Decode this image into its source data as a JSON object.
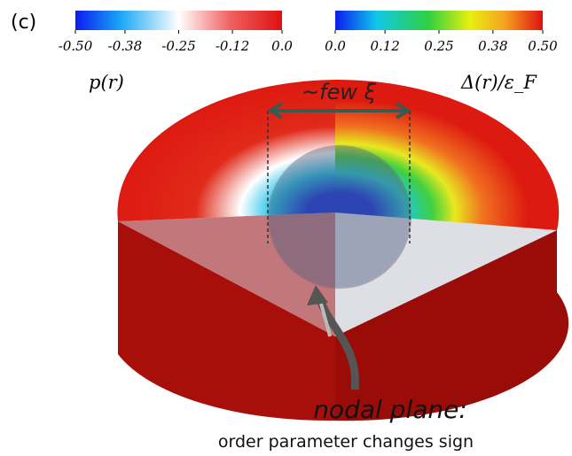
{
  "panel_label": "(c)",
  "colorbars": [
    {
      "label": "p(r)",
      "lim": [
        -0.5,
        0.0
      ],
      "ticks": [
        {
          "value": -0.5,
          "label": "-0.50"
        },
        -0.38,
        -0.25,
        -0.12,
        {
          "value": 0.0,
          "label": "0.0"
        }
      ]
    },
    {
      "label": "Δ(r)/ε_F",
      "lim": [
        0.0,
        0.5
      ],
      "ticks": [
        {
          "value": 0.0,
          "label": "0.0"
        },
        0.12,
        0.25,
        0.38,
        {
          "value": 0.5,
          "label": "0.50"
        }
      ]
    }
  ],
  "annotations": {
    "width": "~few ξ",
    "nodal_title": "nodal plane:",
    "nodal_text": "order parameter changes sign"
  }
}
